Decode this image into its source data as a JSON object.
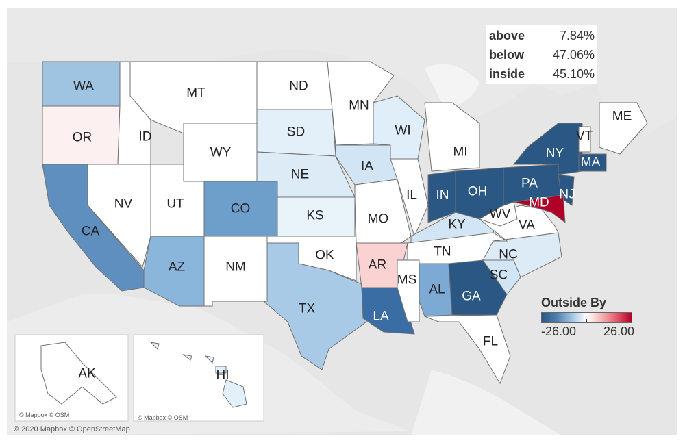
{
  "map": {
    "attribution": "© 2020 Mapbox © OpenStreetMap",
    "inset_attributions": [
      "© Mapbox © OSM",
      "© Mapbox © OSM"
    ],
    "colors": {
      "land": "#e3e3e3",
      "water": "#f7f7f7",
      "border": "#707070"
    },
    "states": [
      {
        "code": "WA",
        "value": -10,
        "color": "#9fc4e2"
      },
      {
        "code": "OR",
        "value": 2,
        "color": "#fdf0f0"
      },
      {
        "code": "CA",
        "value": -18,
        "color": "#5f8fbf"
      },
      {
        "code": "ID",
        "value": 0,
        "color": "#ffffff"
      },
      {
        "code": "NV",
        "value": 0,
        "color": "#ffffff"
      },
      {
        "code": "UT",
        "value": 0,
        "color": "#ffffff"
      },
      {
        "code": "AZ",
        "value": -12,
        "color": "#8bb6db"
      },
      {
        "code": "MT",
        "value": 0,
        "color": "#ffffff"
      },
      {
        "code": "WY",
        "value": 0,
        "color": "#ffffff"
      },
      {
        "code": "CO",
        "value": -16,
        "color": "#6e9fcb"
      },
      {
        "code": "NM",
        "value": 0,
        "color": "#ffffff"
      },
      {
        "code": "ND",
        "value": 0,
        "color": "#ffffff"
      },
      {
        "code": "SD",
        "value": -4,
        "color": "#e4f0f9"
      },
      {
        "code": "NE",
        "value": -5,
        "color": "#ddebf7"
      },
      {
        "code": "KS",
        "value": -3,
        "color": "#e9f3fa"
      },
      {
        "code": "OK",
        "value": 0,
        "color": "#ffffff"
      },
      {
        "code": "TX",
        "value": -10,
        "color": "#a8cae6"
      },
      {
        "code": "MN",
        "value": 0,
        "color": "#ffffff"
      },
      {
        "code": "IA",
        "value": -6,
        "color": "#d2e5f4"
      },
      {
        "code": "MO",
        "value": 0,
        "color": "#ffffff"
      },
      {
        "code": "AR",
        "value": 6,
        "color": "#fbd2d2"
      },
      {
        "code": "LA",
        "value": -22,
        "color": "#3a6da3"
      },
      {
        "code": "WI",
        "value": -4,
        "color": "#e0eef9"
      },
      {
        "code": "IL",
        "value": 0,
        "color": "#ffffff"
      },
      {
        "code": "MI",
        "value": 0,
        "color": "#ffffff"
      },
      {
        "code": "IN",
        "value": -26,
        "color": "#2a5783"
      },
      {
        "code": "OH",
        "value": -26,
        "color": "#2a5783"
      },
      {
        "code": "KY",
        "value": -6,
        "color": "#d2e5f4"
      },
      {
        "code": "TN",
        "value": 0,
        "color": "#ffffff"
      },
      {
        "code": "MS",
        "value": 0,
        "color": "#ffffff"
      },
      {
        "code": "AL",
        "value": -14,
        "color": "#7caad5"
      },
      {
        "code": "GA",
        "value": -26,
        "color": "#2a5783"
      },
      {
        "code": "FL",
        "value": 0,
        "color": "#ffffff"
      },
      {
        "code": "SC",
        "value": -6,
        "color": "#d2e5f4"
      },
      {
        "code": "NC",
        "value": -5,
        "color": "#ddebf7"
      },
      {
        "code": "VA",
        "value": 0,
        "color": "#ffffff"
      },
      {
        "code": "WV",
        "value": 0,
        "color": "#ffffff"
      },
      {
        "code": "PA",
        "value": -26,
        "color": "#2a5783"
      },
      {
        "code": "NY",
        "value": -26,
        "color": "#2a5783"
      },
      {
        "code": "NJ",
        "value": -26,
        "color": "#2a5783"
      },
      {
        "code": "MD",
        "value": 26,
        "color": "#b10026"
      },
      {
        "code": "VT",
        "value": 0,
        "color": "#ffffff"
      },
      {
        "code": "ME",
        "value": 0,
        "color": "#ffffff"
      },
      {
        "code": "MA",
        "value": -26,
        "color": "#2a5783"
      },
      {
        "code": "AK",
        "value": 0,
        "color": "#ffffff"
      },
      {
        "code": "HI",
        "value": -4,
        "color": "#e4f0f9"
      }
    ]
  },
  "stats": [
    {
      "label": "above",
      "value": "7.84%"
    },
    {
      "label": "below",
      "value": "47.06%"
    },
    {
      "label": "inside",
      "value": "45.10%"
    }
  ],
  "legend": {
    "title": "Outside By",
    "min_label": "-26.00",
    "max_label": "26.00",
    "min": -26,
    "max": 26,
    "color_low": "#2a5783",
    "color_mid": "#ffffff",
    "color_high": "#b10026"
  }
}
